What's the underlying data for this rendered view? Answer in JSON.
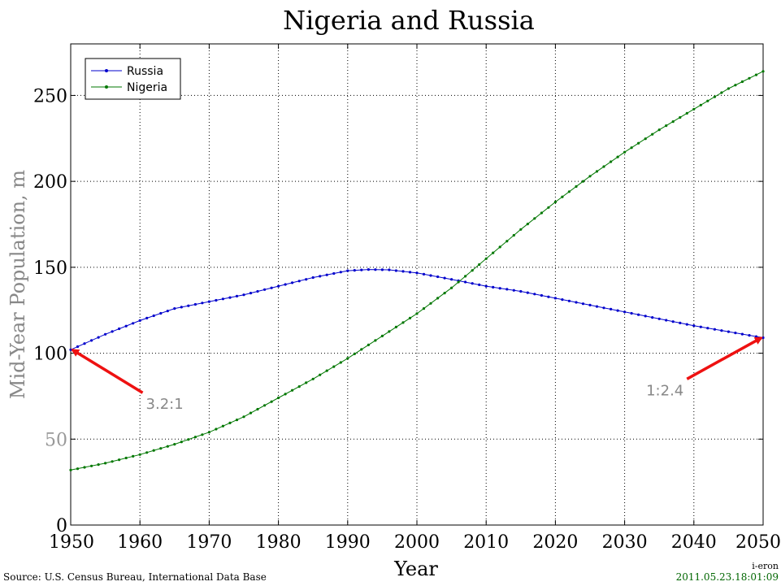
{
  "chart_data": {
    "type": "line",
    "title": "Nigeria and Russia",
    "xlabel": "Year",
    "ylabel": "Mid-Year Population, m",
    "xlim": [
      1950,
      2050
    ],
    "ylim": [
      0,
      280
    ],
    "xticks": [
      1950,
      1960,
      1970,
      1980,
      1990,
      2000,
      2010,
      2020,
      2030,
      2040,
      2050
    ],
    "yticks": [
      0,
      50,
      100,
      150,
      200,
      250
    ],
    "grid": true,
    "legend_position": "top-left",
    "series": [
      {
        "name": "Russia",
        "color": "#0000cc",
        "points": [
          [
            1950,
            102
          ],
          [
            1955,
            111
          ],
          [
            1960,
            119
          ],
          [
            1965,
            126
          ],
          [
            1970,
            130
          ],
          [
            1975,
            134
          ],
          [
            1980,
            139
          ],
          [
            1985,
            144
          ],
          [
            1990,
            148
          ],
          [
            1993,
            148.7
          ],
          [
            1996,
            148.5
          ],
          [
            2000,
            146.7
          ],
          [
            2005,
            143
          ],
          [
            2010,
            139
          ],
          [
            2015,
            136
          ],
          [
            2020,
            132
          ],
          [
            2025,
            128
          ],
          [
            2030,
            124
          ],
          [
            2035,
            120
          ],
          [
            2040,
            116
          ],
          [
            2045,
            112.5
          ],
          [
            2050,
            109
          ]
        ]
      },
      {
        "name": "Nigeria",
        "color": "#007700",
        "points": [
          [
            1950,
            32
          ],
          [
            1955,
            36
          ],
          [
            1960,
            41
          ],
          [
            1965,
            47
          ],
          [
            1970,
            54
          ],
          [
            1975,
            63
          ],
          [
            1980,
            74
          ],
          [
            1985,
            85
          ],
          [
            1990,
            97
          ],
          [
            1995,
            110
          ],
          [
            2000,
            123
          ],
          [
            2005,
            138
          ],
          [
            2010,
            155
          ],
          [
            2015,
            172
          ],
          [
            2020,
            188
          ],
          [
            2025,
            203
          ],
          [
            2030,
            217
          ],
          [
            2035,
            230
          ],
          [
            2040,
            242
          ],
          [
            2045,
            254
          ],
          [
            2050,
            264
          ]
        ]
      }
    ],
    "annotations": [
      {
        "text": "3.2:1",
        "arrow_from": [
          1951,
          77
        ],
        "arrow_to": [
          1950,
          102
        ]
      },
      {
        "text": "1:2.4",
        "arrow_from": [
          2039,
          85
        ],
        "arrow_to": [
          2050,
          109
        ]
      }
    ]
  },
  "footer": {
    "source": "Source: U.S. Census Bureau, International Data Base",
    "author": "i-eron",
    "timestamp": "2011.05.23.18:01:09"
  }
}
